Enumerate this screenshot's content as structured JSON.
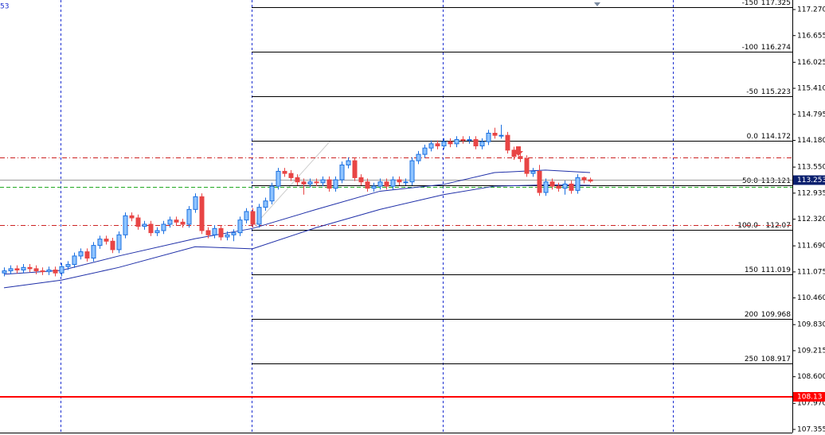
{
  "chart_data": {
    "type": "candlestick",
    "corner_label": "53",
    "ylim": [
      107.355,
      117.27
    ],
    "yticks": [
      {
        "value": 117.27,
        "label": "117.270"
      },
      {
        "value": 116.655,
        "label": "116.655"
      },
      {
        "value": 116.025,
        "label": "116.025"
      },
      {
        "value": 115.41,
        "label": "115.410"
      },
      {
        "value": 114.795,
        "label": "114.795"
      },
      {
        "value": 114.18,
        "label": "114.180"
      },
      {
        "value": 113.55,
        "label": "113.550"
      },
      {
        "value": 112.935,
        "label": "112.935"
      },
      {
        "value": 112.32,
        "label": "112.320"
      },
      {
        "value": 111.69,
        "label": "111.690"
      },
      {
        "value": 111.075,
        "label": "111.075"
      },
      {
        "value": 110.46,
        "label": "110.460"
      },
      {
        "value": 109.83,
        "label": "109.830"
      },
      {
        "value": 109.215,
        "label": "109.215"
      },
      {
        "value": 108.6,
        "label": "108.600"
      },
      {
        "value": 107.97,
        "label": "107.970"
      },
      {
        "value": 107.355,
        "label": "107.355"
      }
    ],
    "bull_color": "#1a6fe0",
    "bear_color": "#e84545",
    "ohlc": [
      [
        111.05,
        111.18,
        110.97,
        111.1
      ],
      [
        111.1,
        111.23,
        111.02,
        111.15
      ],
      [
        111.15,
        111.23,
        111.04,
        111.12
      ],
      [
        111.12,
        111.26,
        111.04,
        111.18
      ],
      [
        111.18,
        111.26,
        111.07,
        111.15
      ],
      [
        111.15,
        111.23,
        111.02,
        111.1
      ],
      [
        111.1,
        111.18,
        111.0,
        111.08
      ],
      [
        111.08,
        111.2,
        111.0,
        111.12
      ],
      [
        111.12,
        111.2,
        110.97,
        111.05
      ],
      [
        111.05,
        111.28,
        110.97,
        111.2
      ],
      [
        111.2,
        111.33,
        111.12,
        111.25
      ],
      [
        111.25,
        111.53,
        111.17,
        111.45
      ],
      [
        111.45,
        111.63,
        111.37,
        111.55
      ],
      [
        111.55,
        111.63,
        111.32,
        111.4
      ],
      [
        111.4,
        111.78,
        111.32,
        111.7
      ],
      [
        111.7,
        111.93,
        111.62,
        111.85
      ],
      [
        111.85,
        111.93,
        111.72,
        111.8
      ],
      [
        111.8,
        111.88,
        111.52,
        111.6
      ],
      [
        111.6,
        112.03,
        111.52,
        111.95
      ],
      [
        111.95,
        112.48,
        111.87,
        112.4
      ],
      [
        112.4,
        112.48,
        112.27,
        112.35
      ],
      [
        112.35,
        112.43,
        112.07,
        112.15
      ],
      [
        112.15,
        112.28,
        112.07,
        112.2
      ],
      [
        112.2,
        112.28,
        111.92,
        112.0
      ],
      [
        112.0,
        112.13,
        111.92,
        112.05
      ],
      [
        112.05,
        112.28,
        111.97,
        112.2
      ],
      [
        112.2,
        112.38,
        112.12,
        112.3
      ],
      [
        112.3,
        112.38,
        112.17,
        112.25
      ],
      [
        112.25,
        112.33,
        112.12,
        112.2
      ],
      [
        112.2,
        112.63,
        112.12,
        112.55
      ],
      [
        112.55,
        112.93,
        112.47,
        112.85
      ],
      [
        112.85,
        112.93,
        111.97,
        112.05
      ],
      [
        112.05,
        112.13,
        111.87,
        111.95
      ],
      [
        111.95,
        112.18,
        111.87,
        112.1
      ],
      [
        112.1,
        112.18,
        111.82,
        111.9
      ],
      [
        111.9,
        112.03,
        111.82,
        111.95
      ],
      [
        111.95,
        112.08,
        111.8,
        112.0
      ],
      [
        112.0,
        112.38,
        111.92,
        112.3
      ],
      [
        112.3,
        112.58,
        112.22,
        112.5
      ],
      [
        112.5,
        112.58,
        112.12,
        112.2
      ],
      [
        112.2,
        112.68,
        112.12,
        112.6
      ],
      [
        112.6,
        112.83,
        112.52,
        112.75
      ],
      [
        112.75,
        113.18,
        112.67,
        113.1
      ],
      [
        113.1,
        113.53,
        113.02,
        113.45
      ],
      [
        113.45,
        113.53,
        113.32,
        113.4
      ],
      [
        113.4,
        113.48,
        113.22,
        113.3
      ],
      [
        113.3,
        113.38,
        113.12,
        113.2
      ],
      [
        113.2,
        113.28,
        112.9,
        113.15
      ],
      [
        113.15,
        113.28,
        113.07,
        113.2
      ],
      [
        113.2,
        113.28,
        113.1,
        113.18
      ],
      [
        113.18,
        113.33,
        113.1,
        113.25
      ],
      [
        113.25,
        113.33,
        112.97,
        113.05
      ],
      [
        113.05,
        113.33,
        112.97,
        113.25
      ],
      [
        113.25,
        113.68,
        113.17,
        113.6
      ],
      [
        113.6,
        113.78,
        113.52,
        113.7
      ],
      [
        113.7,
        113.78,
        113.22,
        113.3
      ],
      [
        113.3,
        113.38,
        113.12,
        113.2
      ],
      [
        113.2,
        113.28,
        112.97,
        113.05
      ],
      [
        113.05,
        113.18,
        112.97,
        113.1
      ],
      [
        113.1,
        113.28,
        113.02,
        113.2
      ],
      [
        113.2,
        113.28,
        113.02,
        113.1
      ],
      [
        113.1,
        113.33,
        113.02,
        113.25
      ],
      [
        113.25,
        113.33,
        113.12,
        113.2
      ],
      [
        113.2,
        113.28,
        113.12,
        113.2
      ],
      [
        113.2,
        113.78,
        113.12,
        113.7
      ],
      [
        113.7,
        113.93,
        113.62,
        113.85
      ],
      [
        113.85,
        114.08,
        113.77,
        114.0
      ],
      [
        114.0,
        114.18,
        113.92,
        114.1
      ],
      [
        114.1,
        114.18,
        113.97,
        114.05
      ],
      [
        114.05,
        114.23,
        113.97,
        114.15
      ],
      [
        114.15,
        114.23,
        114.02,
        114.1
      ],
      [
        114.1,
        114.28,
        114.02,
        114.2
      ],
      [
        114.2,
        114.28,
        114.1,
        114.18
      ],
      [
        114.18,
        114.28,
        114.1,
        114.2
      ],
      [
        114.2,
        114.28,
        113.97,
        114.05
      ],
      [
        114.05,
        114.23,
        113.97,
        114.15
      ],
      [
        114.15,
        114.43,
        114.07,
        114.35
      ],
      [
        114.35,
        114.48,
        114.22,
        114.3
      ],
      [
        114.3,
        114.55,
        114.22,
        114.3
      ],
      [
        114.3,
        114.38,
        113.87,
        113.95
      ],
      [
        113.95,
        114.03,
        113.72,
        113.8
      ],
      [
        113.8,
        113.88,
        113.67,
        113.75
      ],
      [
        113.75,
        113.83,
        113.32,
        113.4
      ],
      [
        113.4,
        113.53,
        113.32,
        113.45
      ],
      [
        113.45,
        113.6,
        112.87,
        112.95
      ],
      [
        112.95,
        113.28,
        112.87,
        113.2
      ],
      [
        113.2,
        113.28,
        113.02,
        113.1
      ],
      [
        113.1,
        113.18,
        112.97,
        113.05
      ],
      [
        113.05,
        113.23,
        112.9,
        113.15
      ],
      [
        113.15,
        113.23,
        112.92,
        113.0
      ],
      [
        113.0,
        113.38,
        112.92,
        113.3
      ],
      [
        113.3,
        113.33,
        113.17,
        113.25
      ],
      [
        113.25,
        113.3,
        113.18,
        113.22
      ]
    ],
    "ma_index": [
      0,
      9,
      18,
      30,
      39,
      49,
      59,
      69,
      77,
      85,
      92
    ],
    "series": [
      {
        "color": "#1f2fa8",
        "values": [
          111.02,
          111.11,
          111.45,
          111.86,
          112.1,
          112.55,
          112.98,
          113.14,
          113.42,
          113.48,
          113.42
        ]
      },
      {
        "color": "#1f2fa8",
        "values": [
          110.7,
          110.88,
          111.18,
          111.67,
          111.62,
          112.12,
          112.55,
          112.9,
          113.1,
          113.13,
          113.12
        ]
      }
    ],
    "fib_levels": [
      {
        "label": "-150",
        "price": 117.325
      },
      {
        "label": "-100",
        "price": 116.274
      },
      {
        "label": "-50",
        "price": 115.223
      },
      {
        "label": "0.0",
        "price": 114.172
      },
      {
        "label": "50.0",
        "price": 113.121
      },
      {
        "label": "100.0",
        "price": 112.07
      },
      {
        "label": "150",
        "price": 111.019
      },
      {
        "label": "200",
        "price": 109.968
      },
      {
        "label": "250",
        "price": 108.917
      }
    ],
    "fib_color": "#000000",
    "dashdot_lines": [
      113.78,
      112.18
    ],
    "dashdot_color": "#cc2222",
    "green_line": 113.09,
    "current_price": 113.253,
    "current_color": "#0a1f6e",
    "alert_price": 108.13,
    "alert_color": "#ff0000"
  }
}
